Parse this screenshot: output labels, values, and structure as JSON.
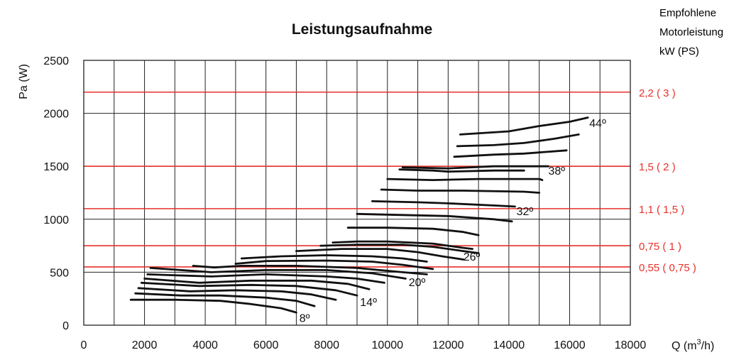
{
  "chart_data": {
    "type": "line",
    "title": "Leistungsaufnahme",
    "xlabel": "Q (m",
    "xlabel_sup": "3",
    "xlabel_suffix": "/h)",
    "ylabel": "Pa (W)",
    "xlim": [
      0,
      18000
    ],
    "ylim": [
      0,
      2500
    ],
    "xticks": [
      0,
      2000,
      4000,
      6000,
      8000,
      10000,
      12000,
      14000,
      16000,
      18000
    ],
    "yticks": [
      0,
      500,
      1000,
      1500,
      2000,
      2500
    ],
    "x_minor_step": 1000,
    "grid": true,
    "side_title": [
      "Empfohlene",
      "Motorleistung",
      "kW (PS)"
    ],
    "colors": {
      "grid": "#222222",
      "curve": "#111111",
      "motor": "#e8302a",
      "motor_label": "#e8302a"
    },
    "motor_lines": [
      {
        "y": 2200,
        "label": "2,2 ( 3 )"
      },
      {
        "y": 1500,
        "label": "1,5 ( 2 )"
      },
      {
        "y": 1100,
        "label": "1,1 ( 1,5 )"
      },
      {
        "y": 750,
        "label": "0,75 ( 1 )"
      },
      {
        "y": 550,
        "label": "0,55 ( 0,75 )"
      }
    ],
    "series": [
      {
        "points": [
          [
            1550,
            240
          ],
          [
            3000,
            240
          ],
          [
            4500,
            230
          ],
          [
            5500,
            200
          ],
          [
            6500,
            160
          ],
          [
            7000,
            120
          ]
        ]
      },
      {
        "points": [
          [
            1700,
            300
          ],
          [
            3200,
            280
          ],
          [
            4500,
            280
          ],
          [
            6000,
            260
          ],
          [
            7000,
            230
          ],
          [
            7600,
            180
          ]
        ]
      },
      {
        "points": [
          [
            1800,
            350
          ],
          [
            3500,
            320
          ],
          [
            5000,
            330
          ],
          [
            6500,
            320
          ],
          [
            7500,
            290
          ],
          [
            8300,
            240
          ]
        ]
      },
      {
        "points": [
          [
            1900,
            400
          ],
          [
            3800,
            370
          ],
          [
            5500,
            380
          ],
          [
            7000,
            370
          ],
          [
            8300,
            330
          ],
          [
            9000,
            280
          ]
        ]
      },
      {
        "points": [
          [
            2000,
            440
          ],
          [
            3800,
            400
          ],
          [
            5500,
            420
          ],
          [
            7500,
            420
          ],
          [
            8700,
            390
          ],
          [
            9400,
            340
          ]
        ]
      },
      {
        "points": [
          [
            2100,
            480
          ],
          [
            4200,
            460
          ],
          [
            6000,
            480
          ],
          [
            8000,
            460
          ],
          [
            9000,
            440
          ],
          [
            9900,
            400
          ]
        ]
      },
      {
        "points": [
          [
            2200,
            540
          ],
          [
            4200,
            500
          ],
          [
            6000,
            520
          ],
          [
            8000,
            520
          ],
          [
            9500,
            490
          ],
          [
            10600,
            440
          ]
        ]
      },
      {
        "points": [
          [
            3600,
            560
          ],
          [
            4300,
            545
          ],
          [
            5200,
            560
          ],
          [
            7000,
            560
          ],
          [
            9000,
            540
          ],
          [
            10500,
            500
          ],
          [
            11300,
            480
          ]
        ]
      },
      {
        "points": [
          [
            5000,
            580
          ],
          [
            6000,
            605
          ],
          [
            8000,
            610
          ],
          [
            9500,
            600
          ],
          [
            10500,
            570
          ],
          [
            11500,
            530
          ]
        ]
      },
      {
        "points": [
          [
            5200,
            630
          ],
          [
            6500,
            650
          ],
          [
            8000,
            660
          ],
          [
            9500,
            650
          ],
          [
            10500,
            630
          ],
          [
            11300,
            600
          ]
        ]
      },
      {
        "points": [
          [
            7000,
            700
          ],
          [
            8500,
            720
          ],
          [
            10000,
            720
          ],
          [
            11000,
            690
          ],
          [
            11800,
            650
          ],
          [
            12500,
            620
          ]
        ]
      },
      {
        "points": [
          [
            7800,
            750
          ],
          [
            9000,
            760
          ],
          [
            10500,
            760
          ],
          [
            11500,
            740
          ],
          [
            12500,
            700
          ],
          [
            13000,
            680
          ]
        ]
      },
      {
        "points": [
          [
            8200,
            780
          ],
          [
            9000,
            790
          ],
          [
            10000,
            790
          ],
          [
            11500,
            770
          ],
          [
            12500,
            730
          ],
          [
            12800,
            720
          ]
        ]
      },
      {
        "points": [
          [
            8700,
            920
          ],
          [
            10000,
            920
          ],
          [
            11500,
            910
          ],
          [
            12500,
            880
          ],
          [
            13000,
            850
          ]
        ]
      },
      {
        "points": [
          [
            9000,
            1050
          ],
          [
            10500,
            1040
          ],
          [
            12000,
            1030
          ],
          [
            13500,
            1000
          ],
          [
            14100,
            980
          ]
        ]
      },
      {
        "points": [
          [
            9500,
            1170
          ],
          [
            11000,
            1160
          ],
          [
            12000,
            1150
          ],
          [
            13500,
            1130
          ],
          [
            14200,
            1120
          ]
        ]
      },
      {
        "points": [
          [
            9800,
            1280
          ],
          [
            11000,
            1270
          ],
          [
            12500,
            1270
          ],
          [
            14500,
            1260
          ],
          [
            15000,
            1250
          ]
        ]
      },
      {
        "points": [
          [
            10000,
            1380
          ],
          [
            11500,
            1370
          ],
          [
            13000,
            1380
          ],
          [
            15000,
            1380
          ],
          [
            15100,
            1370
          ]
        ]
      },
      {
        "points": [
          [
            10400,
            1470
          ],
          [
            11500,
            1460
          ],
          [
            12000,
            1450
          ],
          [
            13500,
            1460
          ],
          [
            14500,
            1460
          ]
        ]
      },
      {
        "points": [
          [
            10500,
            1490
          ],
          [
            12000,
            1480
          ],
          [
            13500,
            1500
          ],
          [
            14500,
            1500
          ],
          [
            15300,
            1500
          ]
        ]
      },
      {
        "points": [
          [
            12200,
            1590
          ],
          [
            13500,
            1610
          ],
          [
            14500,
            1620
          ],
          [
            15900,
            1650
          ]
        ]
      },
      {
        "points": [
          [
            12300,
            1690
          ],
          [
            13500,
            1700
          ],
          [
            14500,
            1720
          ],
          [
            15500,
            1760
          ],
          [
            16300,
            1800
          ]
        ]
      },
      {
        "points": [
          [
            12400,
            1800
          ],
          [
            14000,
            1830
          ],
          [
            15000,
            1880
          ],
          [
            16000,
            1920
          ],
          [
            16600,
            1960
          ]
        ]
      }
    ],
    "annotations": [
      {
        "text": "8º",
        "x": 7100,
        "y": 70
      },
      {
        "text": "14º",
        "x": 9100,
        "y": 220
      },
      {
        "text": "20º",
        "x": 10700,
        "y": 410
      },
      {
        "text": "26º",
        "x": 12500,
        "y": 650
      },
      {
        "text": "32º",
        "x": 14250,
        "y": 1080
      },
      {
        "text": "38º",
        "x": 15300,
        "y": 1460
      },
      {
        "text": "44º",
        "x": 16650,
        "y": 1910
      }
    ]
  }
}
